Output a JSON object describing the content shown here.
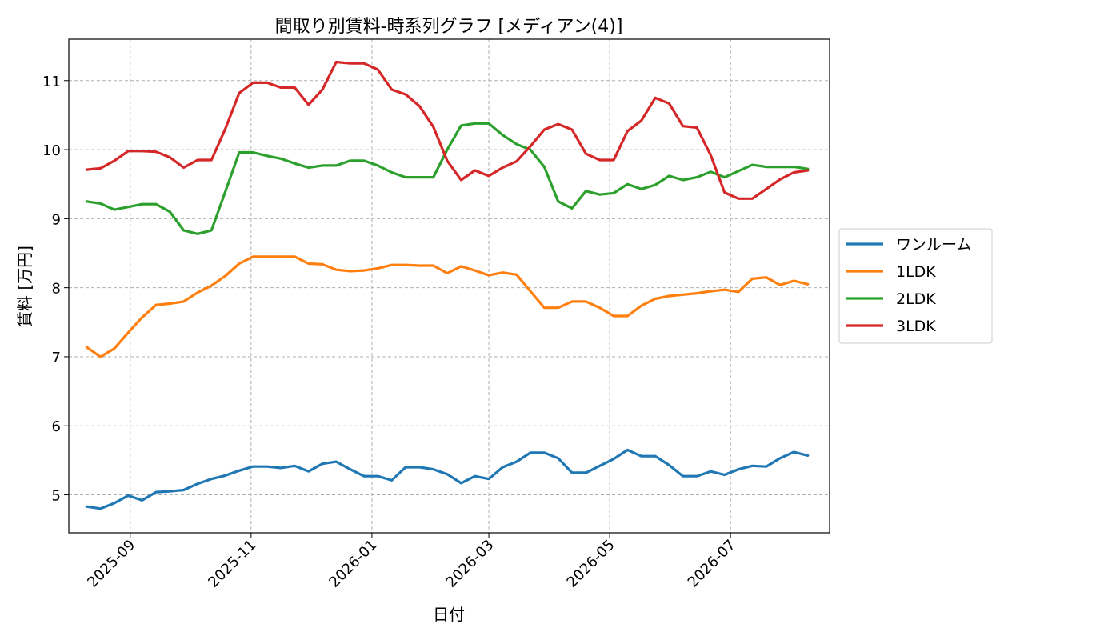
{
  "chart_data": {
    "type": "line",
    "title": "間取り別賃料-時系列グラフ [メディアン(4)]",
    "xlabel": "日付",
    "ylabel": "賃料 [万円]",
    "xlim": [
      "2025-08-01",
      "2026-08-20"
    ],
    "ylim": [
      4.45,
      11.6
    ],
    "xticks": [
      {
        "date": "2025-09-01",
        "label": "2025-09"
      },
      {
        "date": "2025-11-01",
        "label": "2025-11"
      },
      {
        "date": "2026-01-01",
        "label": "2026-01"
      },
      {
        "date": "2026-03-01",
        "label": "2026-03"
      },
      {
        "date": "2026-05-01",
        "label": "2026-05"
      },
      {
        "date": "2026-07-01",
        "label": "2026-07"
      }
    ],
    "yticks": [
      5,
      6,
      7,
      8,
      9,
      10,
      11
    ],
    "grid": true,
    "legend_position": "right-outside",
    "x": [
      "2025-08-10",
      "2025-08-17",
      "2025-08-24",
      "2025-08-31",
      "2025-09-07",
      "2025-09-14",
      "2025-09-21",
      "2025-09-28",
      "2025-10-05",
      "2025-10-12",
      "2025-10-19",
      "2025-10-26",
      "2025-11-02",
      "2025-11-09",
      "2025-11-16",
      "2025-11-23",
      "2025-11-30",
      "2025-12-07",
      "2025-12-14",
      "2025-12-21",
      "2025-12-28",
      "2026-01-04",
      "2026-01-11",
      "2026-01-18",
      "2026-01-25",
      "2026-02-01",
      "2026-02-08",
      "2026-02-15",
      "2026-02-22",
      "2026-03-01",
      "2026-03-08",
      "2026-03-15",
      "2026-03-22",
      "2026-03-29",
      "2026-04-05",
      "2026-04-12",
      "2026-04-19",
      "2026-04-26",
      "2026-05-03",
      "2026-05-10",
      "2026-05-17",
      "2026-05-24",
      "2026-05-31",
      "2026-06-07",
      "2026-06-14",
      "2026-06-21",
      "2026-06-28",
      "2026-07-05",
      "2026-07-12",
      "2026-07-19",
      "2026-07-26",
      "2026-08-02",
      "2026-08-09"
    ],
    "series": [
      {
        "name": "ワンルーム",
        "color": "#1f77b4",
        "values": [
          4.83,
          4.8,
          4.88,
          4.99,
          4.92,
          5.04,
          5.05,
          5.07,
          5.16,
          5.23,
          5.28,
          5.35,
          5.41,
          5.41,
          5.39,
          5.42,
          5.34,
          5.45,
          5.48,
          5.37,
          5.27,
          5.27,
          5.21,
          5.4,
          5.4,
          5.37,
          5.3,
          5.17,
          5.27,
          5.23,
          5.4,
          5.48,
          5.61,
          5.61,
          5.53,
          5.32,
          5.32,
          5.42,
          5.52,
          5.65,
          5.56,
          5.56,
          5.43,
          5.27,
          5.27,
          5.34,
          5.29,
          5.37,
          5.42,
          5.41,
          5.53,
          5.62,
          5.57
        ]
      },
      {
        "name": "1LDK",
        "color": "#ff7f0e",
        "values": [
          7.14,
          7.0,
          7.12,
          7.35,
          7.57,
          7.75,
          7.77,
          7.8,
          7.93,
          8.03,
          8.17,
          8.35,
          8.45,
          8.45,
          8.45,
          8.45,
          8.35,
          8.34,
          8.26,
          8.24,
          8.25,
          8.28,
          8.33,
          8.33,
          8.32,
          8.32,
          8.21,
          8.31,
          8.25,
          8.18,
          8.22,
          8.19,
          7.95,
          7.71,
          7.71,
          7.8,
          7.8,
          7.71,
          7.59,
          7.59,
          7.74,
          7.84,
          7.88,
          7.9,
          7.92,
          7.95,
          7.97,
          7.94,
          8.13,
          8.15,
          8.04,
          8.1,
          8.05
        ]
      },
      {
        "name": "2LDK",
        "color": "#2ca02c",
        "values": [
          9.25,
          9.22,
          9.13,
          9.17,
          9.21,
          9.21,
          9.1,
          8.83,
          8.78,
          8.83,
          9.39,
          9.96,
          9.96,
          9.91,
          9.87,
          9.8,
          9.74,
          9.77,
          9.77,
          9.84,
          9.84,
          9.77,
          9.67,
          9.6,
          9.6,
          9.6,
          10.0,
          10.35,
          10.38,
          10.38,
          10.21,
          10.08,
          10.0,
          9.75,
          9.25,
          9.15,
          9.4,
          9.35,
          9.37,
          9.5,
          9.43,
          9.49,
          9.62,
          9.56,
          9.6,
          9.68,
          9.6,
          9.69,
          9.78,
          9.75,
          9.75,
          9.75,
          9.72
        ]
      },
      {
        "name": "3LDK",
        "color": "#d62728",
        "values": [
          9.71,
          9.73,
          9.84,
          9.98,
          9.98,
          9.97,
          9.89,
          9.74,
          9.85,
          9.85,
          10.3,
          10.82,
          10.97,
          10.97,
          10.9,
          10.9,
          10.65,
          10.87,
          11.27,
          11.25,
          11.25,
          11.16,
          10.87,
          10.8,
          10.63,
          10.33,
          9.84,
          9.56,
          9.7,
          9.62,
          9.74,
          9.83,
          10.05,
          10.29,
          10.37,
          10.29,
          9.94,
          9.85,
          9.85,
          10.27,
          10.42,
          10.75,
          10.67,
          10.34,
          10.32,
          9.92,
          9.38,
          9.29,
          9.29,
          9.43,
          9.57,
          9.67,
          9.7
        ]
      }
    ]
  }
}
